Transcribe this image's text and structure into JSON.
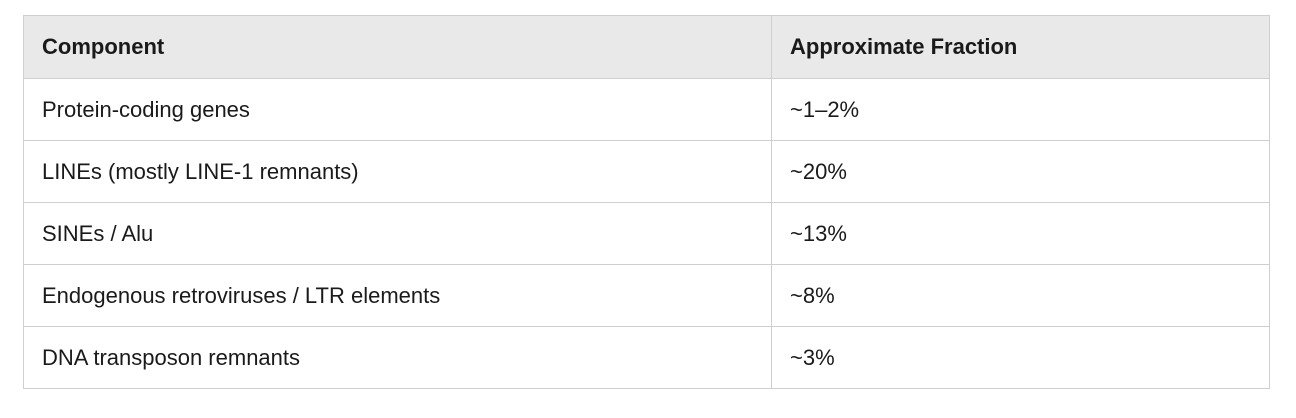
{
  "table": {
    "header": [
      "Component",
      "Approximate Fraction"
    ],
    "rows": [
      [
        "Protein-coding genes",
        "~1–2%"
      ],
      [
        "LINEs (mostly LINE-1 remnants)",
        "~20%"
      ],
      [
        "SINEs / Alu",
        "~13%"
      ],
      [
        "Endogenous retroviruses / LTR elements",
        "~8%"
      ],
      [
        "DNA transposon remnants",
        "~3%"
      ]
    ]
  }
}
